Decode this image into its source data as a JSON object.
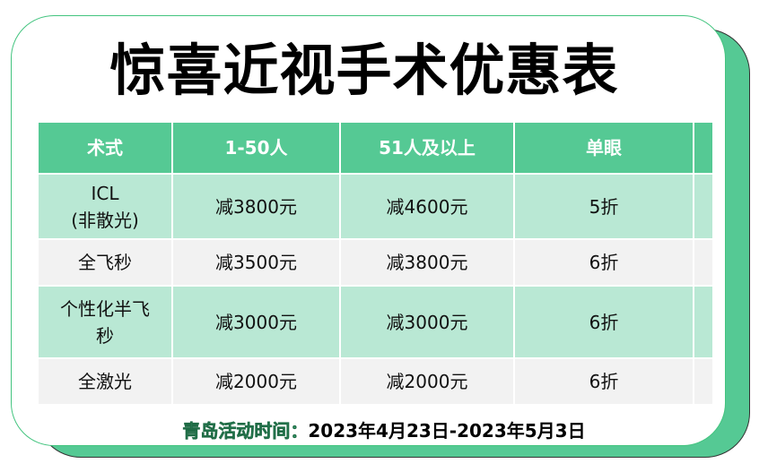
{
  "title": "惊喜近视手术优惠表",
  "table": {
    "headers": [
      "术式",
      "1-50人",
      "51人及以上",
      "单眼",
      ""
    ],
    "rows": [
      [
        "ICL\n(非散光)",
        "减3800元",
        "减4600元",
        "5折",
        ""
      ],
      [
        "全飞秒",
        "减3500元",
        "减3800元",
        "6折",
        ""
      ],
      [
        "个性化半飞\n秒",
        "减3000元",
        "减3000元",
        "6折",
        ""
      ],
      [
        "全激光",
        "减2000元",
        "减2000元",
        "6折",
        ""
      ]
    ]
  },
  "footer": {
    "label": "青岛活动时间：",
    "value": "2023年4月23日-2023年5月3日"
  },
  "colors": {
    "accent": "#55c994",
    "row_green": "#b9e8d4",
    "row_gray": "#f2f2f2"
  }
}
